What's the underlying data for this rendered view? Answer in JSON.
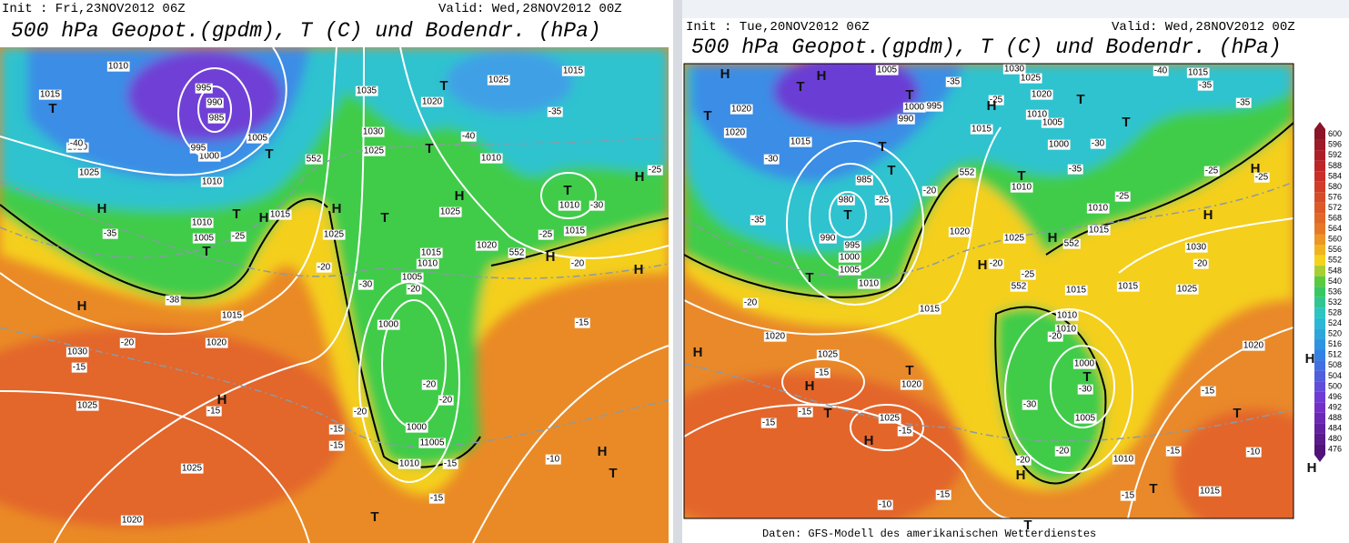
{
  "left": {
    "init": "Init : Fri,23NOV2012 06Z",
    "valid": "Valid: Wed,28NOV2012 00Z",
    "title": "500 hPa Geopot.(gpdm), T (C) und Bodendr. (hPa)",
    "labels": [
      "1010",
      "995",
      "990",
      "985",
      "1015",
      "T",
      "1020",
      "-40",
      "1000",
      "995",
      "1005",
      "T",
      "1025",
      "1010",
      "H",
      "T",
      "H",
      "1015",
      "1010",
      "1005",
      "T",
      "-25",
      "-35",
      "H",
      "-38",
      "1015",
      "1020",
      "-20",
      "1030",
      "-15",
      "1025",
      "H",
      "-15",
      "1025",
      "1020",
      "1035",
      "1030",
      "1025",
      "1020",
      "T",
      "T",
      "H",
      "1025",
      "T",
      "1025",
      "1010",
      "-40",
      "-35",
      "1015",
      "1025",
      "T",
      "1010",
      "-30",
      "H",
      "-25",
      "1015",
      "-25",
      "1020",
      "552",
      "H",
      "-20",
      "H",
      "1015",
      "1010",
      "1005",
      "-30",
      "-20",
      "1000",
      "-20",
      "-20",
      "-20",
      "1000",
      "-15",
      "-15",
      "11005",
      "1010",
      "-15",
      "-15",
      "T",
      "-10",
      "H",
      "T",
      "-15",
      "-20",
      "H",
      "552"
    ]
  },
  "right": {
    "init": "Init : Tue,20NOV2012 06Z",
    "valid": "Valid: Wed,28NOV2012 00Z",
    "title": "500 hPa Geopot.(gpdm), T (C) und Bodendr. (hPa)",
    "footer": "Daten: GFS-Modell des amerikanischen Wetterdienstes",
    "legend": [
      600,
      596,
      592,
      588,
      584,
      580,
      576,
      572,
      568,
      564,
      560,
      556,
      552,
      548,
      540,
      536,
      532,
      528,
      524,
      520,
      516,
      512,
      508,
      504,
      500,
      496,
      492,
      488,
      484,
      480,
      476
    ],
    "labels": [
      "H",
      "T",
      "H",
      "1005",
      "1020",
      "T",
      "1020",
      "1015",
      "T",
      "1000",
      "995",
      "990",
      "-35",
      "1030",
      "1025",
      "1020",
      "1010",
      "1005",
      "-25",
      "H",
      "1015",
      "T",
      "-40",
      "1015",
      "-35",
      "-35",
      "-30",
      "1000",
      "T",
      "T",
      "1010",
      "-35",
      "-25",
      "1010",
      "1015",
      "H",
      "552",
      "-30",
      "T",
      "985",
      "980",
      "T",
      "990",
      "995",
      "1000",
      "1005",
      "T",
      "1010",
      "-25",
      "-20",
      "T",
      "552",
      "1020",
      "1025",
      "H",
      "-20",
      "-25",
      "552",
      "1015",
      "1015",
      "1010",
      "1010",
      "-20",
      "-35",
      "-20",
      "1015",
      "1020",
      "H",
      "1025",
      "-15",
      "H",
      "T",
      "1020",
      "1000",
      "T",
      "-30",
      "-30",
      "1005",
      "T",
      "-15",
      "-15",
      "1025",
      "-15",
      "H",
      "H",
      "-20",
      "-20",
      "1010",
      "-15",
      "T",
      "1015",
      "T",
      "-10",
      "H",
      "1020",
      "-20",
      "1025",
      "1030",
      "H",
      "H",
      "-25",
      "-25",
      "H",
      "-15",
      "-15",
      "-10",
      "-15",
      "T"
    ]
  }
}
